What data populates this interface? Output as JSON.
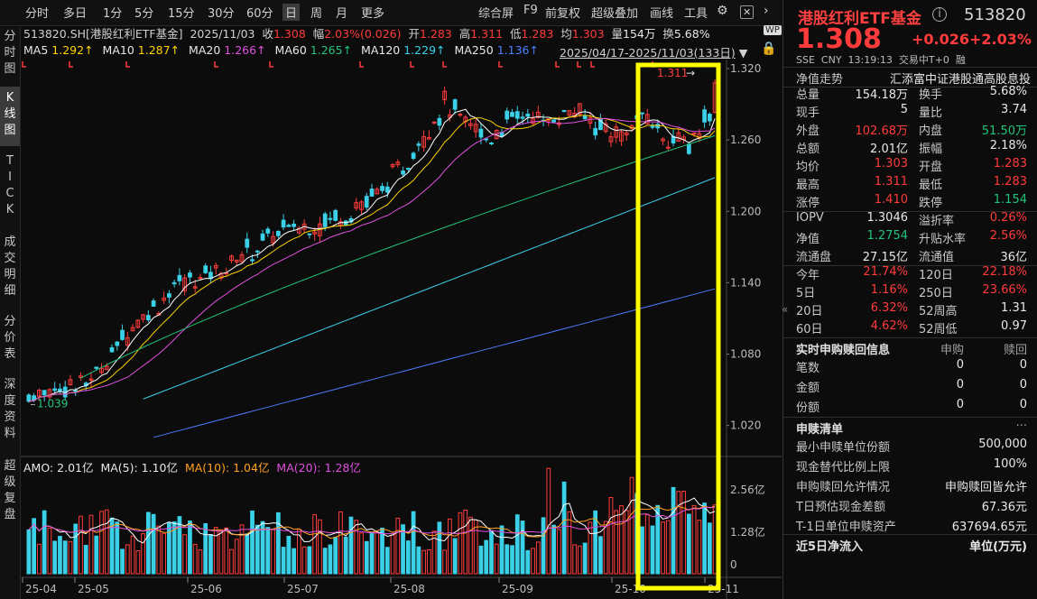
{
  "toolbar": {
    "periods": [
      "分时",
      "多日",
      "1分",
      "5分",
      "15分",
      "30分",
      "60分",
      "日",
      "周",
      "月",
      "更多"
    ],
    "active_period": "日",
    "right_items": [
      "综合屏",
      "F9",
      "前复权",
      "超级叠加",
      "画线",
      "工具"
    ]
  },
  "left_tabs": [
    "分\n时\n图",
    "K\n线\n图",
    "T\nI\nC\nK",
    "成\n交\n明\n细",
    "分\n价\n表",
    "深\n度\n资\n料",
    "超\n级\n复\n盘"
  ],
  "quote_line": {
    "code": "513820.SH[港股红利ETF基金]",
    "date": "2025/11/03",
    "close_label": "收",
    "close": "1.308",
    "amp_label": "幅",
    "amp": "2.03%(0.026)",
    "open_label": "开",
    "open": "1.283",
    "high_label": "高",
    "high": "1.311",
    "low_label": "低",
    "low": "1.283",
    "avg_label": "均",
    "avg": "1.303",
    "vol_label": "量",
    "vol": "154万",
    "turnover_label": "换",
    "turnover": "5.68%"
  },
  "ma_line": {
    "items": [
      {
        "name": "MA5",
        "value": "1.292↑",
        "color": "#ffd200"
      },
      {
        "name": "MA10",
        "value": "1.287↑",
        "color": "#ffd200"
      },
      {
        "name": "MA20",
        "value": "1.266↑",
        "color": "#e050e0"
      },
      {
        "name": "MA60",
        "value": "1.265↑",
        "color": "#21c47a"
      },
      {
        "name": "MA120",
        "value": "1.229↑",
        "color": "#3ad0e8"
      },
      {
        "name": "MA250",
        "value": "1.136↑",
        "color": "#4d7dff"
      }
    ],
    "range": "2025/04/17-2025/11/03(133日)"
  },
  "price_axis": [
    "1.320",
    "1.260",
    "1.200",
    "1.140",
    "1.080",
    "1.020"
  ],
  "volume_axis": [
    "2.56亿",
    "1.28亿",
    "0"
  ],
  "date_axis": [
    "25-04",
    "25-05",
    "25-06",
    "25-07",
    "25-08",
    "25-09",
    "25-10",
    "25-11"
  ],
  "annotations": {
    "high_mark": "1.311",
    "low_mark": "1.039"
  },
  "amo_line": {
    "amo": "AMO: 2.01亿",
    "ma5": "MA(5): 1.10亿",
    "ma10": "MA(10): 1.04亿",
    "ma20": "MA(20): 1.28亿"
  },
  "colors": {
    "up": "#ff3b3b",
    "down": "#3ad0e8",
    "highlight": "#ffff00",
    "bg": "#0c0c0c"
  },
  "chart_data": {
    "type": "candlestick",
    "period": "2025/04/17-2025/11/03",
    "bars": 133,
    "ylim": [
      1.0,
      1.32
    ],
    "low": 1.039,
    "high": 1.311,
    "last_close": 1.308
  },
  "panel": {
    "name": "港股红利ETF基金",
    "code": "513820",
    "price": "1.308",
    "change": "+0.026",
    "change_pct": "+2.03%",
    "sub": "SSE  CNY  13:19:13  交易中T+0  融",
    "trend_label": "净值走势",
    "index_name": "汇添富中证港股通高股息投",
    "rows": [
      {
        "l1": "总量",
        "v1": "154.18万",
        "c1": "white",
        "l2": "换手",
        "v2": "5.68%",
        "c2": "white"
      },
      {
        "l1": "现手",
        "v1": "5",
        "c1": "white",
        "l2": "量比",
        "v2": "3.74",
        "c2": "white"
      },
      {
        "l1": "外盘",
        "v1": "102.68万",
        "c1": "red",
        "l2": "内盘",
        "v2": "51.50万",
        "c2": "green"
      },
      {
        "l1": "总额",
        "v1": "2.01亿",
        "c1": "white",
        "l2": "振幅",
        "v2": "2.18%",
        "c2": "white"
      },
      {
        "l1": "均价",
        "v1": "1.303",
        "c1": "red",
        "l2": "开盘",
        "v2": "1.283",
        "c2": "red"
      },
      {
        "l1": "最高",
        "v1": "1.311",
        "c1": "red",
        "l2": "最低",
        "v2": "1.283",
        "c2": "red"
      },
      {
        "l1": "涨停",
        "v1": "1.410",
        "c1": "red",
        "l2": "跌停",
        "v2": "1.154",
        "c2": "green"
      }
    ],
    "rows2": [
      {
        "l1": "IOPV",
        "v1": "1.3046",
        "c1": "white",
        "l2": "溢折率",
        "v2": "0.26%",
        "c2": "red"
      },
      {
        "l1": "净值",
        "v1": "1.2754",
        "c1": "green",
        "l2": "升贴水率",
        "v2": "2.56%",
        "c2": "red"
      },
      {
        "l1": "流通盘",
        "v1": "27.15亿",
        "c1": "white",
        "l2": "流通值",
        "v2": "36亿",
        "c2": "white"
      }
    ],
    "rows3": [
      {
        "l1": "今年",
        "v1": "21.74%",
        "c1": "red",
        "l2": "120日",
        "v2": "22.18%",
        "c2": "red"
      },
      {
        "l1": "5日",
        "v1": "1.16%",
        "c1": "red",
        "l2": "250日",
        "v2": "23.66%",
        "c2": "red"
      },
      {
        "l1": "20日",
        "v1": "6.32%",
        "c1": "red",
        "l2": "52周高",
        "v2": "1.31",
        "c2": "white"
      },
      {
        "l1": "60日",
        "v1": "4.62%",
        "c1": "red",
        "l2": "52周低",
        "v2": "0.97",
        "c2": "white"
      }
    ],
    "sub_header": {
      "title": "实时申购赎回信息",
      "c1": "申购",
      "c2": "赎回"
    },
    "sub_rows": [
      {
        "l": "笔数",
        "a": "0",
        "b": "0"
      },
      {
        "l": "金额",
        "a": "0",
        "b": "0"
      },
      {
        "l": "份额",
        "a": "0",
        "b": "0"
      }
    ],
    "list_title": "申赎清单",
    "list_more": "···",
    "list_rows": [
      {
        "l": "最小申赎单位份额",
        "v": "500,000"
      },
      {
        "l": "现金替代比例上限",
        "v": "100%"
      },
      {
        "l": "申购赎回允许情况",
        "v": "申购赎回皆允许"
      },
      {
        "l": "T日预估现金差额",
        "v": "67.36元"
      },
      {
        "l": "T-1日单位申赎资产",
        "v": "637694.65元"
      }
    ],
    "flow_title": "近5日净流入",
    "flow_unit": "单位(万元)"
  }
}
